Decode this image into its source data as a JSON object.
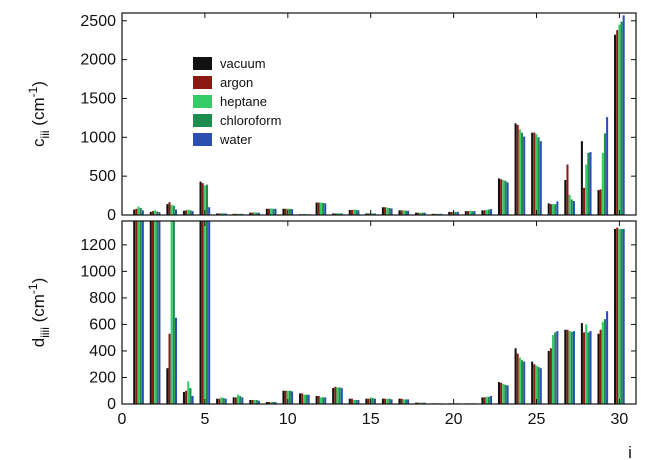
{
  "chart_data": [
    {
      "type": "bar",
      "panel": "top",
      "ylabel": "c_iii (cm^-1)",
      "ylabel_main": "c",
      "ylabel_sub": "iii",
      "ylabel_unit_open": " (cm",
      "ylabel_unit_sup": "-1",
      "ylabel_unit_close": ")",
      "xlim": [
        0,
        31
      ],
      "ylim": [
        0,
        2600
      ],
      "yticks": [
        0,
        500,
        1000,
        1500,
        2000,
        2500
      ],
      "xticks": [
        0,
        5,
        10,
        15,
        20,
        25,
        30
      ],
      "xtick_labels_shown": false,
      "legend": {
        "placement": "upper-left",
        "entries": [
          "vacuum",
          "argon",
          "heptane",
          "chloroform",
          "water"
        ]
      },
      "x": [
        1,
        2,
        3,
        4,
        5,
        6,
        7,
        8,
        9,
        10,
        11,
        12,
        13,
        14,
        15,
        16,
        17,
        18,
        19,
        20,
        21,
        22,
        23,
        24,
        25,
        26,
        27,
        28,
        29,
        30
      ],
      "series": [
        {
          "name": "vacuum",
          "color": "#111111",
          "values": [
            70,
            40,
            140,
            55,
            430,
            20,
            15,
            30,
            80,
            80,
            10,
            160,
            20,
            65,
            20,
            100,
            60,
            30,
            15,
            40,
            50,
            60,
            470,
            1180,
            1060,
            150,
            450,
            950,
            320,
            2320
          ]
        },
        {
          "name": "argon",
          "color": "#8b1a12",
          "values": [
            80,
            50,
            165,
            60,
            410,
            20,
            15,
            30,
            80,
            80,
            10,
            160,
            20,
            65,
            20,
            100,
            60,
            30,
            15,
            40,
            50,
            60,
            460,
            1160,
            1060,
            140,
            650,
            350,
            330,
            2380
          ]
        },
        {
          "name": "heptane",
          "color": "#33cc66",
          "values": [
            110,
            60,
            130,
            70,
            380,
            25,
            15,
            35,
            85,
            80,
            15,
            160,
            25,
            70,
            25,
            95,
            60,
            30,
            15,
            40,
            55,
            65,
            450,
            1100,
            1040,
            140,
            260,
            650,
            800,
            2450
          ]
        },
        {
          "name": "chloroform",
          "color": "#1e8c4e",
          "values": [
            90,
            45,
            120,
            60,
            390,
            20,
            15,
            30,
            80,
            80,
            10,
            155,
            20,
            65,
            20,
            90,
            55,
            30,
            15,
            40,
            50,
            70,
            440,
            1060,
            1000,
            140,
            200,
            800,
            1050,
            2490
          ]
        },
        {
          "name": "water",
          "color": "#2a4fb0",
          "values": [
            60,
            35,
            70,
            50,
            100,
            20,
            15,
            30,
            80,
            75,
            10,
            150,
            20,
            60,
            20,
            85,
            55,
            30,
            15,
            40,
            50,
            75,
            420,
            1010,
            950,
            175,
            180,
            810,
            1260,
            2570
          ]
        }
      ]
    },
    {
      "type": "bar",
      "panel": "bottom",
      "ylabel": "d_iiii (cm^-1)",
      "ylabel_main": "d",
      "ylabel_sub": "iiii",
      "ylabel_unit_open": " (cm",
      "ylabel_unit_sup": "-1",
      "ylabel_unit_close": ")",
      "xlabel": "i",
      "xlim": [
        0,
        31
      ],
      "ylim": [
        0,
        1380
      ],
      "yticks": [
        0,
        200,
        400,
        600,
        800,
        1000,
        1200
      ],
      "xticks": [
        0,
        5,
        10,
        15,
        20,
        25,
        30
      ],
      "x": [
        1,
        2,
        3,
        4,
        5,
        6,
        7,
        8,
        9,
        10,
        11,
        12,
        13,
        14,
        15,
        16,
        17,
        18,
        19,
        20,
        21,
        22,
        23,
        24,
        25,
        26,
        27,
        28,
        29,
        30
      ],
      "series": [
        {
          "name": "vacuum",
          "color": "#111111",
          "values": [
            1380,
            1380,
            270,
            90,
            1380,
            40,
            50,
            30,
            15,
            100,
            80,
            60,
            120,
            40,
            40,
            40,
            40,
            10,
            5,
            5,
            5,
            50,
            165,
            420,
            320,
            400,
            560,
            610,
            530,
            1320
          ]
        },
        {
          "name": "argon",
          "color": "#8b1a12",
          "values": [
            1380,
            1380,
            530,
            100,
            1380,
            40,
            50,
            30,
            15,
            100,
            80,
            60,
            130,
            40,
            40,
            40,
            40,
            10,
            5,
            5,
            5,
            50,
            160,
            380,
            300,
            420,
            560,
            540,
            560,
            1330
          ]
        },
        {
          "name": "heptane",
          "color": "#33cc66",
          "values": [
            1380,
            1380,
            1380,
            170,
            1380,
            50,
            70,
            30,
            15,
            100,
            70,
            50,
            125,
            30,
            50,
            40,
            35,
            10,
            5,
            5,
            5,
            55,
            150,
            350,
            290,
            520,
            550,
            600,
            620,
            1320
          ]
        },
        {
          "name": "chloroform",
          "color": "#1e8c4e",
          "values": [
            1380,
            1380,
            1380,
            120,
            1380,
            45,
            60,
            30,
            15,
            100,
            70,
            50,
            125,
            30,
            45,
            40,
            35,
            10,
            5,
            5,
            5,
            55,
            145,
            330,
            280,
            540,
            545,
            540,
            640,
            1320
          ]
        },
        {
          "name": "water",
          "color": "#2a4fb0",
          "values": [
            1380,
            1380,
            650,
            60,
            1380,
            40,
            50,
            25,
            15,
            95,
            70,
            50,
            120,
            30,
            40,
            35,
            35,
            10,
            5,
            5,
            5,
            60,
            140,
            320,
            270,
            550,
            550,
            550,
            700,
            1320
          ]
        }
      ]
    }
  ]
}
